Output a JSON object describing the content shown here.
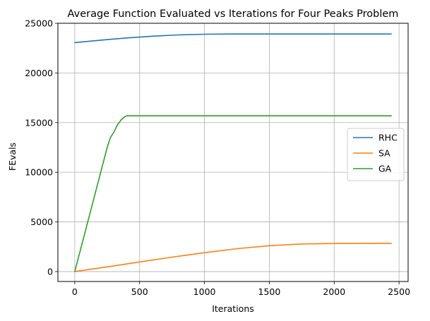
{
  "chart_data": {
    "type": "line",
    "title": "Average Function Evaluated vs Iterations for Four Peaks Problem",
    "xlabel": "Iterations",
    "ylabel": "FEvals",
    "xlim": [
      -130,
      2570
    ],
    "ylim": [
      -1000,
      25000
    ],
    "xticks": [
      0,
      500,
      1000,
      1500,
      2000,
      2500
    ],
    "yticks": [
      0,
      5000,
      10000,
      15000,
      20000,
      25000
    ],
    "grid": true,
    "legend_position": "center-right",
    "series": [
      {
        "name": "RHC",
        "color": "#1f77b4",
        "x": [
          0,
          200,
          400,
          600,
          800,
          1000,
          1200,
          1500,
          2000,
          2440
        ],
        "y": [
          23050,
          23300,
          23520,
          23700,
          23830,
          23900,
          23920,
          23920,
          23920,
          23920
        ]
      },
      {
        "name": "SA",
        "color": "#ff7f0e",
        "x": [
          0,
          250,
          500,
          750,
          1000,
          1250,
          1500,
          1750,
          2000,
          2440
        ],
        "y": [
          0,
          470,
          970,
          1450,
          1900,
          2300,
          2600,
          2780,
          2820,
          2840
        ]
      },
      {
        "name": "GA",
        "color": "#2ca02c",
        "x": [
          0,
          100,
          200,
          250,
          275,
          300,
          330,
          360,
          380,
          400,
          500,
          1000,
          2000,
          2440
        ],
        "y": [
          0,
          5000,
          10000,
          12500,
          13500,
          14000,
          14800,
          15300,
          15550,
          15680,
          15680,
          15680,
          15680,
          15680
        ]
      }
    ]
  }
}
